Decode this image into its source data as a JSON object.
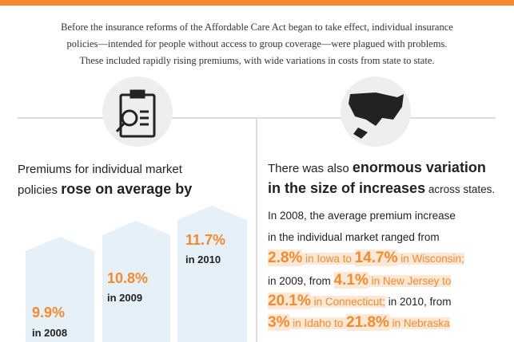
{
  "intro": {
    "lines": [
      "Before the insurance reforms of the Affordable Care Act began to take effect, individual insurance",
      "policies—intended for people without access to group coverage—were plagued with problems.",
      "These included rapidly rising premiums, with wide variations in costs from state to state."
    ]
  },
  "left": {
    "heading": [
      [
        "Premiums for individual market"
      ],
      [
        "policies ",
        "rose on average by"
      ]
    ],
    "bars": [
      {
        "value": "9.9%",
        "label": "in 2008"
      },
      {
        "value": "10.8%",
        "label": "in 2009"
      },
      {
        "value": "11.7%",
        "label": "in 2010"
      }
    ]
  },
  "right": {
    "heading": [
      [
        "There was also ",
        "enormous variation"
      ],
      [
        "in the size of increases",
        " across states."
      ]
    ],
    "body": [
      [
        "In 2008, the average premium increase"
      ],
      [
        "in the individual market ranged from"
      ],
      [
        "2.8%",
        " in Iowa to ",
        "14.7%",
        " in Wisconsin;"
      ],
      [
        "in 2009, from ",
        "4.1%",
        " in New Jersey to"
      ],
      [
        "20.1%",
        " in Connecticut;",
        " in 2010, from"
      ],
      [
        "3%",
        " in Idaho to ",
        "21.8%",
        " in Nebraska"
      ]
    ]
  }
}
